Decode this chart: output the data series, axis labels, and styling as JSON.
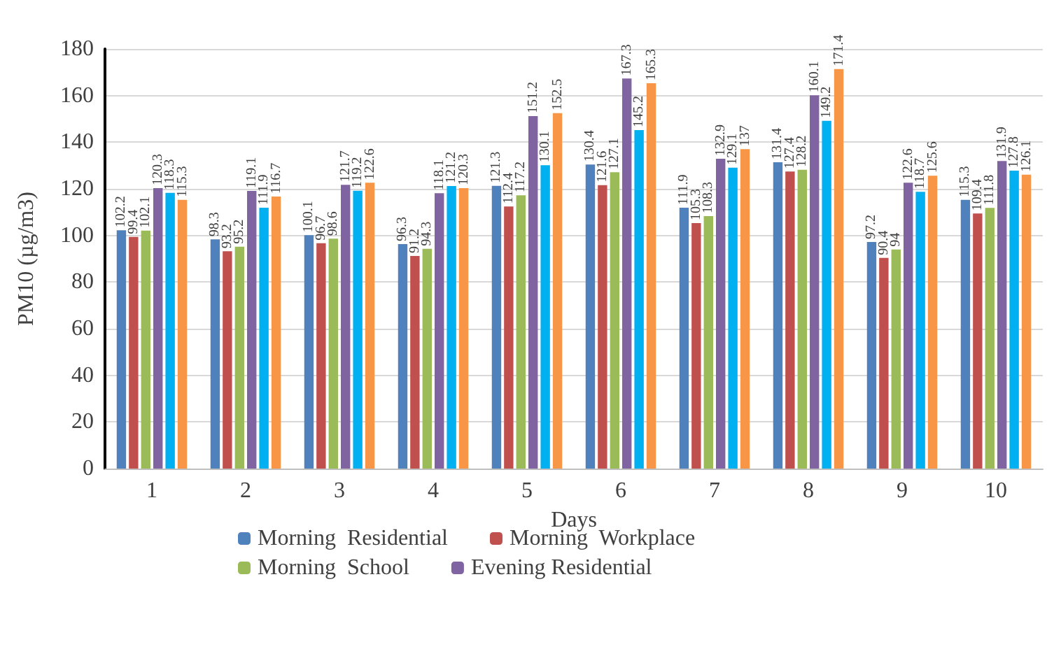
{
  "chart_data": {
    "type": "bar",
    "xlabel": "Days",
    "ylabel": "PM10 (µg/m3)",
    "categories": [
      "1",
      "2",
      "3",
      "4",
      "5",
      "6",
      "7",
      "8",
      "9",
      "10"
    ],
    "series": [
      {
        "name": "Morning  Residential",
        "color": "#4f81bd",
        "values": [
          102.2,
          98.3,
          100.1,
          96.3,
          121.3,
          130.4,
          111.9,
          131.4,
          97.2,
          115.3
        ]
      },
      {
        "name": "Morning  Workplace",
        "color": "#c0504d",
        "values": [
          99.4,
          93.2,
          96.7,
          91.2,
          112.4,
          121.6,
          105.3,
          127.4,
          90.4,
          109.4
        ]
      },
      {
        "name": "Morning  School",
        "color": "#9bbb59",
        "values": [
          102.1,
          95.2,
          98.6,
          94.3,
          117.2,
          127.1,
          108.3,
          128.2,
          94.0,
          111.8
        ]
      },
      {
        "name": "Evening Residential",
        "color": "#8064a2",
        "values": [
          120.3,
          119.1,
          121.7,
          118.1,
          151.2,
          167.3,
          132.9,
          160.1,
          122.6,
          131.9
        ]
      },
      {
        "color": "#00b0f0",
        "values": [
          118.3,
          111.9,
          119.2,
          121.2,
          130.1,
          145.2,
          129.1,
          149.2,
          118.7,
          127.8
        ]
      },
      {
        "color": "#f79646",
        "values": [
          115.3,
          116.7,
          122.6,
          120.3,
          152.5,
          165.3,
          137,
          171.4,
          125.6,
          126.1
        ]
      }
    ],
    "ylim": [
      0,
      180
    ],
    "yticks": [
      0,
      20,
      40,
      60,
      80,
      100,
      120,
      140,
      160,
      180
    ],
    "grid": "y",
    "legend": "bottom",
    "data_labels": true
  }
}
